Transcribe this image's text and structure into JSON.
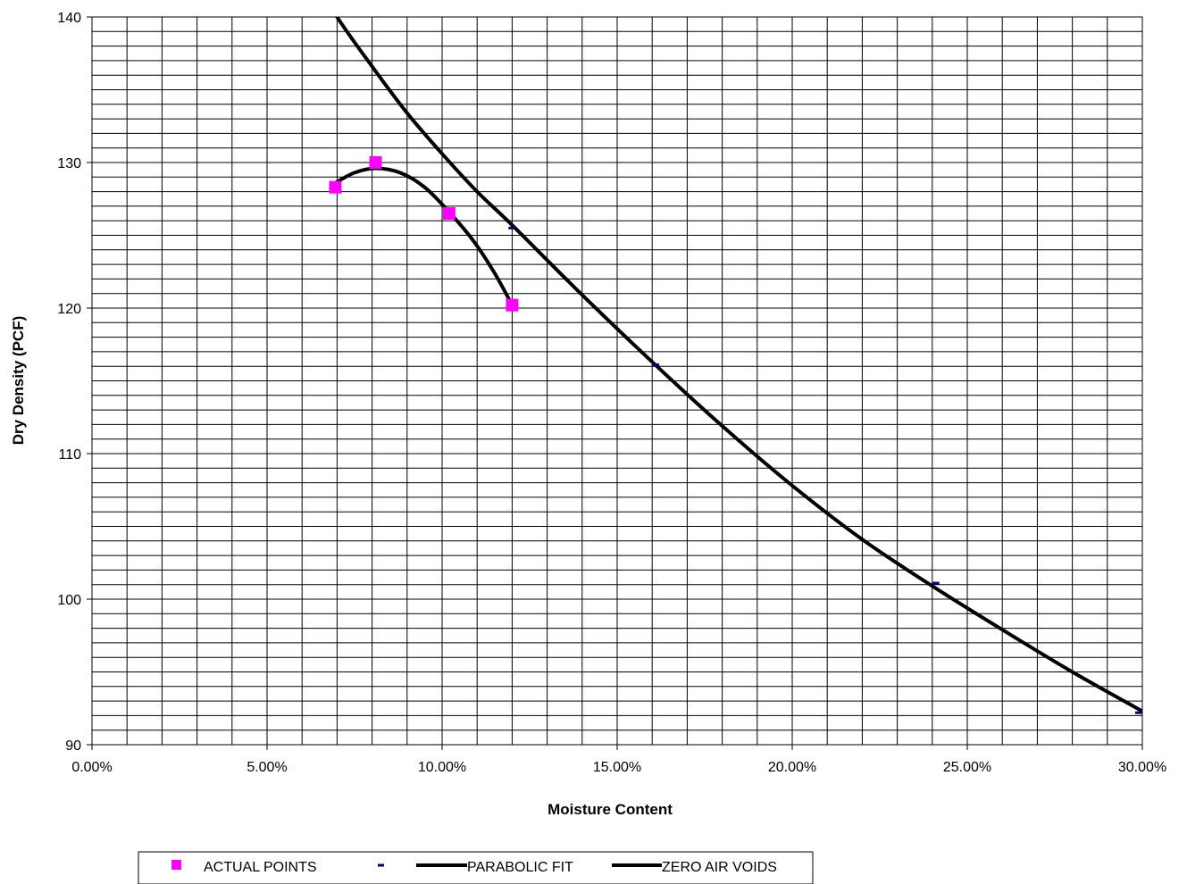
{
  "chart_data": {
    "type": "scatter",
    "xlabel": "Moisture Content",
    "ylabel": "Dry Density (PCF)",
    "xlim": [
      0,
      0.3
    ],
    "ylim": [
      90,
      140
    ],
    "x_ticks": [
      0,
      0.05,
      0.1,
      0.15,
      0.2,
      0.25,
      0.3
    ],
    "x_tick_labels": [
      "0.00%",
      "5.00%",
      "10.00%",
      "15.00%",
      "20.00%",
      "25.00%",
      "30.00%"
    ],
    "y_ticks": [
      90,
      100,
      110,
      120,
      130,
      140
    ],
    "y_tick_labels": [
      "90",
      "100",
      "110",
      "120",
      "130",
      "140"
    ],
    "grid": true,
    "x_minor_step": 0.01,
    "y_minor_step": 1,
    "legend_position": "bottom",
    "series": [
      {
        "name": "ACTUAL POINTS",
        "kind": "markers",
        "marker": "square",
        "color": "#ff00ff",
        "x": [
          0.0695,
          0.081,
          0.102,
          0.12
        ],
        "y": [
          128.3,
          130.0,
          126.5,
          120.2
        ]
      },
      {
        "name": "",
        "kind": "markers",
        "marker": "dash",
        "color": "#000080",
        "x": [
          0.12,
          0.161,
          0.241,
          0.301
        ],
        "y": [
          125.5,
          116.1,
          101.1,
          92.2
        ]
      },
      {
        "name": "PARABOLIC FIT",
        "kind": "line",
        "color": "#000000",
        "x": [
          0.0695,
          0.075,
          0.081,
          0.088,
          0.095,
          0.102,
          0.109,
          0.115,
          0.12
        ],
        "y": [
          128.6,
          129.3,
          129.6,
          129.3,
          128.3,
          126.6,
          124.6,
          122.4,
          120.2
        ]
      },
      {
        "name": "ZERO AIR VOIDS",
        "kind": "line",
        "color": "#000000",
        "x": [
          0.06,
          0.07,
          0.08,
          0.09,
          0.1,
          0.11,
          0.12,
          0.14,
          0.16,
          0.18,
          0.2,
          0.22,
          0.24,
          0.26,
          0.28,
          0.3
        ],
        "y": [
          144.0,
          140.0,
          136.6,
          133.4,
          130.6,
          128.0,
          125.7,
          120.9,
          116.3,
          111.9,
          107.8,
          104.1,
          100.9,
          97.9,
          95.0,
          92.3
        ]
      }
    ]
  }
}
